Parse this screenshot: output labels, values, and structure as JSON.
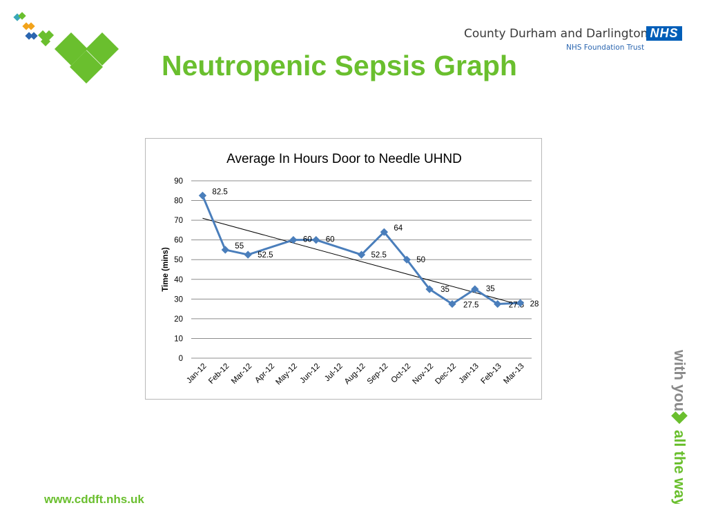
{
  "header": {
    "org_name": "County Durham and Darlington",
    "nhs_badge": "NHS",
    "org_sub": "NHS Foundation Trust",
    "title": "Neutropenic Sepsis Graph"
  },
  "footer": {
    "url": "www.cddft.nhs.uk",
    "tagline_part1": "with you",
    "tagline_part2": "all the way"
  },
  "colors": {
    "brand_green": "#6abf2e",
    "nhs_blue": "#005eb8",
    "series_blue": "#4a7ebb"
  },
  "chart_data": {
    "type": "line",
    "title": "Average In Hours Door to Needle UHND",
    "xlabel": "",
    "ylabel": "Time (mins)",
    "ylim": [
      0,
      90
    ],
    "yticks": [
      0,
      10,
      20,
      30,
      40,
      50,
      60,
      70,
      80,
      90
    ],
    "grid": true,
    "categories": [
      "Jan-12",
      "Feb-12",
      "Mar-12",
      "Apr-12",
      "May-12",
      "Jun-12",
      "Jul-12",
      "Aug-12",
      "Sep-12",
      "Oct-12",
      "Nov-12",
      "Dec-12",
      "Jan-13",
      "Feb-13",
      "Mar-13"
    ],
    "series": [
      {
        "values": [
          82.5,
          55,
          52.5,
          null,
          60,
          60,
          null,
          52.5,
          64,
          50,
          35,
          27.5,
          35,
          27.5,
          28
        ],
        "labels": [
          "82.5",
          "55",
          "52.5",
          "",
          "60",
          "60",
          "",
          "52.5",
          "64",
          "50",
          "35",
          "27.5",
          "35",
          "27.5",
          "28"
        ]
      }
    ],
    "trendline": {
      "type": "linear",
      "start_y": 71,
      "end_y": 27
    }
  }
}
